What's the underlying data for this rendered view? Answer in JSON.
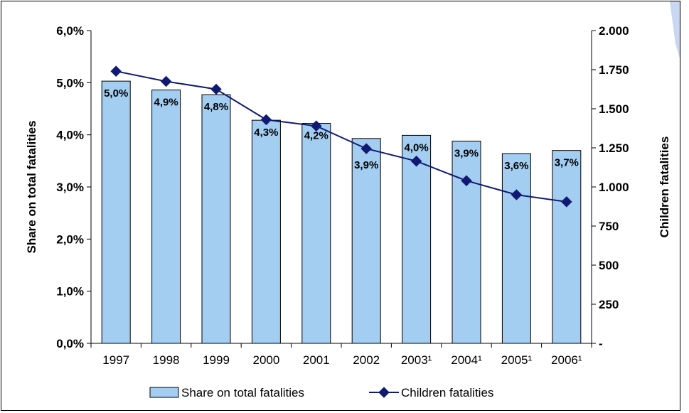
{
  "colors": {
    "bar_fill": "#a3cdf1",
    "bar_stroke": "#000000",
    "line": "#101a72",
    "marker": "#101a72"
  },
  "chart_data": {
    "type": "bar",
    "categories": [
      "1997",
      "1998",
      "1999",
      "2000",
      "2001",
      "2002",
      "2003¹",
      "2004¹",
      "2005¹",
      "2006¹"
    ],
    "series": [
      {
        "name": "Share on total fatalities",
        "type": "bar",
        "axis": "left",
        "values": [
          5.03,
          4.86,
          4.77,
          4.28,
          4.22,
          3.93,
          3.99,
          3.88,
          3.64,
          3.7
        ],
        "labels": [
          "5,0%",
          "4,9%",
          "4,8%",
          "4,3%",
          "4,2%",
          "3,9%",
          "4,0%",
          "3,9%",
          "3,6%",
          "3,7%"
        ]
      },
      {
        "name": "Children fatalities",
        "type": "line",
        "axis": "right",
        "values": [
          1740,
          1675,
          1625,
          1430,
          1390,
          1245,
          1165,
          1040,
          950,
          905
        ]
      }
    ],
    "ylabel": "Share on total fatalities",
    "y2label": "Children fatalities",
    "ylim": [
      0,
      6.0
    ],
    "y2lim": [
      0,
      2000
    ],
    "yticks": [
      "0,0%",
      "1,0%",
      "2,0%",
      "3,0%",
      "4,0%",
      "5,0%",
      "6,0%"
    ],
    "y2ticks": [
      "-",
      "250",
      "500",
      "750",
      "1.000",
      "1.250",
      "1.500",
      "1.750",
      "2.000"
    ],
    "grid": false,
    "legend": "bottom"
  }
}
